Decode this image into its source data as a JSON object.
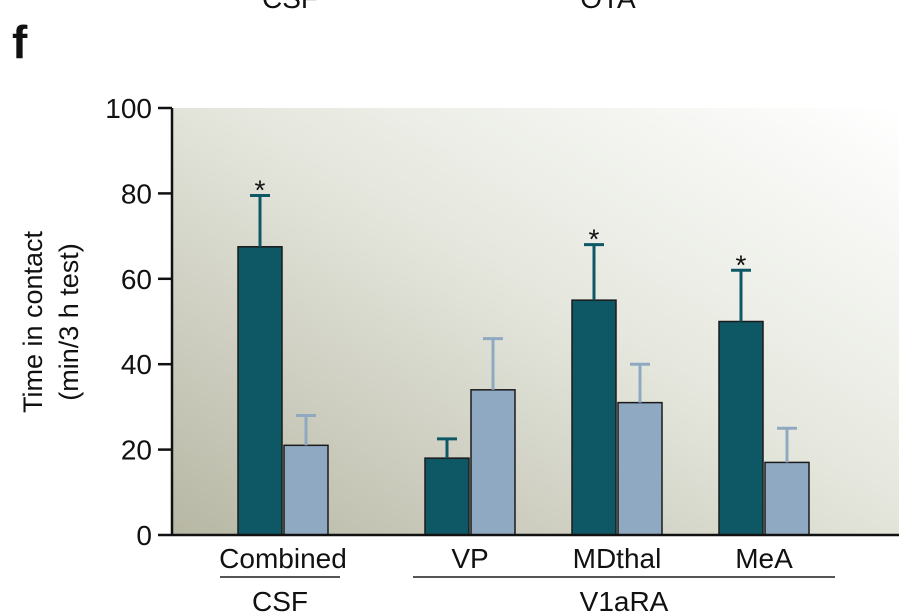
{
  "header": {
    "top_labels": [
      "CSF",
      "OTA"
    ],
    "panel_letter": "f"
  },
  "chart_data": {
    "type": "bar",
    "ylabel": "Time in contact\n(min/3 h test)",
    "ylim": [
      0,
      100
    ],
    "yticks": [
      0,
      20,
      40,
      60,
      80,
      100
    ],
    "categories": [
      "Combined",
      "VP",
      "MDthal",
      "MeA"
    ],
    "groups": [
      {
        "label": "CSF",
        "categories": [
          "Combined"
        ]
      },
      {
        "label": "V1aRA",
        "categories": [
          "VP",
          "MDthal",
          "MeA"
        ]
      }
    ],
    "series": [
      {
        "color": "#0e5866",
        "values": [
          67.5,
          18,
          55,
          50
        ],
        "error": [
          12,
          4.5,
          13,
          12
        ]
      },
      {
        "color": "#8fa9c2",
        "values": [
          21,
          34,
          31,
          17
        ],
        "error": [
          7,
          12,
          9,
          8
        ]
      }
    ],
    "annotations": [
      {
        "text": "*",
        "category": "Combined",
        "series": 0
      },
      {
        "text": "*",
        "category": "MDthal",
        "series": 0
      },
      {
        "text": "*",
        "category": "MeA",
        "series": 0
      }
    ],
    "grid": false
  }
}
